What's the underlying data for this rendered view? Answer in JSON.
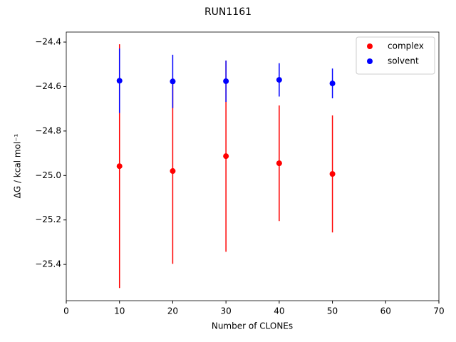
{
  "chart_data": {
    "type": "errorbar",
    "title": "RUN1161",
    "xlabel": "Number of CLONEs",
    "ylabel": "ΔG / kcal mol⁻¹",
    "x": [
      10,
      20,
      30,
      40,
      50
    ],
    "series": [
      {
        "name": "complex",
        "color": "#ff0000",
        "values": [
          -24.958,
          -24.98,
          -24.913,
          -24.945,
          -24.993
        ],
        "errors": [
          0.548,
          0.417,
          0.43,
          0.26,
          0.263
        ]
      },
      {
        "name": "solvent",
        "color": "#0000ff",
        "values": [
          -24.574,
          -24.577,
          -24.576,
          -24.57,
          -24.586
        ],
        "errors": [
          0.145,
          0.12,
          0.093,
          0.075,
          0.067
        ]
      }
    ],
    "xlim": [
      0,
      70
    ],
    "xticks": [
      0,
      10,
      20,
      30,
      40,
      50,
      60,
      70
    ],
    "ylim": [
      -25.563,
      -24.355
    ],
    "yticks": [
      {
        "value": -24.4,
        "label": "−24.4"
      },
      {
        "value": -24.6,
        "label": "−24.6"
      },
      {
        "value": -24.8,
        "label": "−24.8"
      },
      {
        "value": -25.0,
        "label": "−25.0"
      },
      {
        "value": -25.2,
        "label": "−25.2"
      },
      {
        "value": -25.4,
        "label": "−25.4"
      }
    ],
    "legend": "upper right",
    "grid": false
  }
}
